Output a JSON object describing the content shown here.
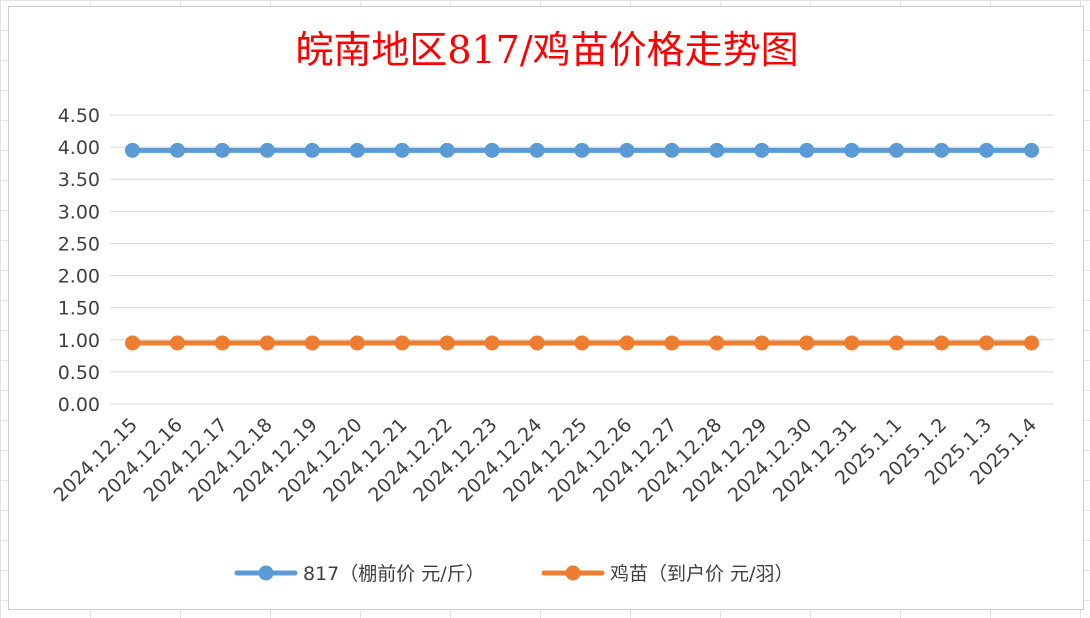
{
  "chart_data": {
    "type": "line",
    "title": "皖南地区817/鸡苗价格走势图",
    "xlabel": "",
    "ylabel": "",
    "ylim": [
      0,
      4.5
    ],
    "ytick_step": 0.5,
    "y_tick_labels": [
      "0.00",
      "0.50",
      "1.00",
      "1.50",
      "2.00",
      "2.50",
      "3.00",
      "3.50",
      "4.00",
      "4.50"
    ],
    "grid": true,
    "legend_position": "bottom",
    "categories": [
      "2024.12.15",
      "2024.12.16",
      "2024.12.17",
      "2024.12.18",
      "2024.12.19",
      "2024.12.20",
      "2024.12.21",
      "2024.12.22",
      "2024.12.23",
      "2024.12.24",
      "2024.12.25",
      "2024.12.26",
      "2024.12.27",
      "2024.12.28",
      "2024.12.29",
      "2024.12.30",
      "2024.12.31",
      "2025.1.1",
      "2025.1.2",
      "2025.1.3",
      "2025.1.4"
    ],
    "series": [
      {
        "name": "817（棚前价 元/斤）",
        "color": "#5b9bd5",
        "values": [
          3.95,
          3.95,
          3.95,
          3.95,
          3.95,
          3.95,
          3.95,
          3.95,
          3.95,
          3.95,
          3.95,
          3.95,
          3.95,
          3.95,
          3.95,
          3.95,
          3.95,
          3.95,
          3.95,
          3.95,
          3.95
        ]
      },
      {
        "name": "鸡苗（到户价 元/羽）",
        "color": "#ed7d31",
        "values": [
          0.95,
          0.95,
          0.95,
          0.95,
          0.95,
          0.95,
          0.95,
          0.95,
          0.95,
          0.95,
          0.95,
          0.95,
          0.95,
          0.95,
          0.95,
          0.95,
          0.95,
          0.95,
          0.95,
          0.95,
          0.95
        ]
      }
    ]
  }
}
